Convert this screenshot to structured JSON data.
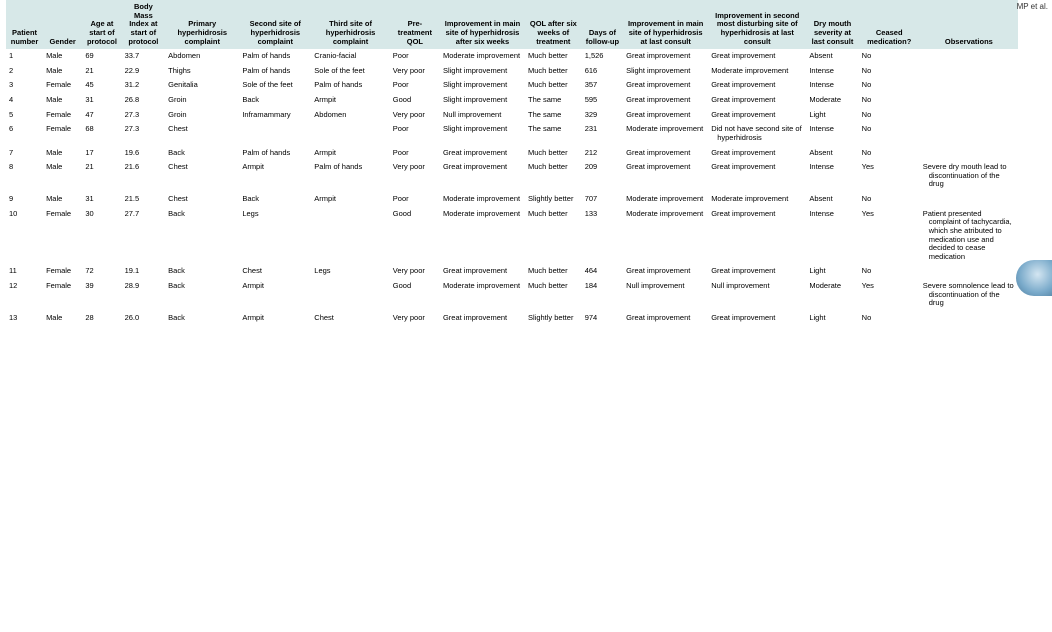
{
  "sideText": "MP et al.",
  "headers": [
    "Patient number",
    "Gender",
    "Age at start of protocol",
    "Body Mass Index at start of protocol",
    "Primary hyperhidrosis complaint",
    "Second site of hyperhidrosis complaint",
    "Third site of hyperhidrosis complaint",
    "Pre-treatment QOL",
    "Improvement in main site of hyperhidrosis after six weeks",
    "QOL after six weeks of treatment",
    "Days of follow-up",
    "Improvement in main site of hyperhidrosis at last consult",
    "Improvement in second most disturbing site of hyperhidrosis at last consult",
    "Dry mouth severity at last consult",
    "Ceased medication?",
    "Observations"
  ],
  "rows": [
    {
      "pn": "1",
      "gender": "Male",
      "age": "69",
      "bmi": "33.7",
      "prim": "Abdomen",
      "sec": "Palm of hands",
      "thi": "Cranio-facial",
      "pre": "Poor",
      "impw": "Moderate improvement",
      "qolw": "Much better",
      "days": "1,526",
      "imp1": "Great improvement",
      "imp2": "Great improvement",
      "dry": "Absent",
      "cease": "No",
      "obs": ""
    },
    {
      "pn": "2",
      "gender": "Male",
      "age": "21",
      "bmi": "22.9",
      "prim": "Thighs",
      "sec": "Palm of hands",
      "thi": "Sole of the feet",
      "pre": "Very poor",
      "impw": "Slight improvement",
      "qolw": "Much better",
      "days": "616",
      "imp1": "Slight improvement",
      "imp2": "Moderate improvement",
      "dry": "Intense",
      "cease": "No",
      "obs": ""
    },
    {
      "pn": "3",
      "gender": "Female",
      "age": "45",
      "bmi": "31.2",
      "prim": "Genitalia",
      "sec": "Sole of the feet",
      "thi": "Palm of hands",
      "pre": "Poor",
      "impw": "Slight improvement",
      "qolw": "Much better",
      "days": "357",
      "imp1": "Great improvement",
      "imp2": "Great improvement",
      "dry": "Intense",
      "cease": "No",
      "obs": ""
    },
    {
      "pn": "4",
      "gender": "Male",
      "age": "31",
      "bmi": "26.8",
      "prim": "Groin",
      "sec": "Back",
      "thi": "Armpit",
      "pre": "Good",
      "impw": "Slight improvement",
      "qolw": "The same",
      "days": "595",
      "imp1": "Great improvement",
      "imp2": "Great improvement",
      "dry": "Moderate",
      "cease": "No",
      "obs": ""
    },
    {
      "pn": "5",
      "gender": "Female",
      "age": "47",
      "bmi": "27.3",
      "prim": "Groin",
      "sec": "Inframammary",
      "thi": "Abdomen",
      "pre": "Very poor",
      "impw": "Null improvement",
      "qolw": "The same",
      "days": "329",
      "imp1": "Great improvement",
      "imp2": "Great improvement",
      "dry": "Light",
      "cease": "No",
      "obs": ""
    },
    {
      "pn": "6",
      "gender": "Female",
      "age": "68",
      "bmi": "27.3",
      "prim": "Chest",
      "sec": "",
      "thi": "",
      "pre": "Poor",
      "impw": "Slight improvement",
      "qolw": "The same",
      "days": "231",
      "imp1": "Moderate improvement",
      "imp2": "Did not have second site of hyperhidrosis",
      "dry": "Intense",
      "cease": "No",
      "obs": ""
    },
    {
      "pn": "7",
      "gender": "Male",
      "age": "17",
      "bmi": "19.6",
      "prim": "Back",
      "sec": "Palm of hands",
      "thi": "Armpit",
      "pre": "Poor",
      "impw": "Great improvement",
      "qolw": "Much better",
      "days": "212",
      "imp1": "Great improvement",
      "imp2": "Great improvement",
      "dry": "Absent",
      "cease": "No",
      "obs": ""
    },
    {
      "pn": "8",
      "gender": "Male",
      "age": "21",
      "bmi": "21.6",
      "prim": "Chest",
      "sec": "Armpit",
      "thi": "Palm of hands",
      "pre": "Very poor",
      "impw": "Great improvement",
      "qolw": "Much better",
      "days": "209",
      "imp1": "Great improvement",
      "imp2": "Great improvement",
      "dry": "Intense",
      "cease": "Yes",
      "obs": "Severe dry mouth lead to discontinuation of the drug"
    },
    {
      "pn": "9",
      "gender": "Male",
      "age": "31",
      "bmi": "21.5",
      "prim": "Chest",
      "sec": "Back",
      "thi": "Armpit",
      "pre": "Poor",
      "impw": "Moderate improvement",
      "qolw": "Slightly better",
      "days": "707",
      "imp1": "Moderate improvement",
      "imp2": "Moderate improvement",
      "dry": "Absent",
      "cease": "No",
      "obs": ""
    },
    {
      "pn": "10",
      "gender": "Female",
      "age": "30",
      "bmi": "27.7",
      "prim": "Back",
      "sec": "Legs",
      "thi": "",
      "pre": "Good",
      "impw": "Moderate improvement",
      "qolw": "Much better",
      "days": "133",
      "imp1": "Moderate improvement",
      "imp2": "Great improvement",
      "dry": "Intense",
      "cease": "Yes",
      "obs": "Patient presented complaint of tachycardia, which she atributed to medication use and decided to cease medication"
    },
    {
      "pn": "11",
      "gender": "Female",
      "age": "72",
      "bmi": "19.1",
      "prim": "Back",
      "sec": "Chest",
      "thi": "Legs",
      "pre": "Very poor",
      "impw": "Great improvement",
      "qolw": "Much better",
      "days": "464",
      "imp1": "Great improvement",
      "imp2": "Great improvement",
      "dry": "Light",
      "cease": "No",
      "obs": ""
    },
    {
      "pn": "12",
      "gender": "Female",
      "age": "39",
      "bmi": "28.9",
      "prim": "Back",
      "sec": "Armpit",
      "thi": "",
      "pre": "Good",
      "impw": "Moderate improvement",
      "qolw": "Much better",
      "days": "184",
      "imp1": "Null improvement",
      "imp2": "Null improvement",
      "dry": "Moderate",
      "cease": "Yes",
      "obs": "Severe somnolence lead to discontinuation of the drug"
    },
    {
      "pn": "13",
      "gender": "Male",
      "age": "28",
      "bmi": "26.0",
      "prim": "Back",
      "sec": "Armpit",
      "thi": "Chest",
      "pre": "Very poor",
      "impw": "Great improvement",
      "qolw": "Slightly better",
      "days": "974",
      "imp1": "Great improvement",
      "imp2": "Great improvement",
      "dry": "Light",
      "cease": "No",
      "obs": ""
    }
  ]
}
